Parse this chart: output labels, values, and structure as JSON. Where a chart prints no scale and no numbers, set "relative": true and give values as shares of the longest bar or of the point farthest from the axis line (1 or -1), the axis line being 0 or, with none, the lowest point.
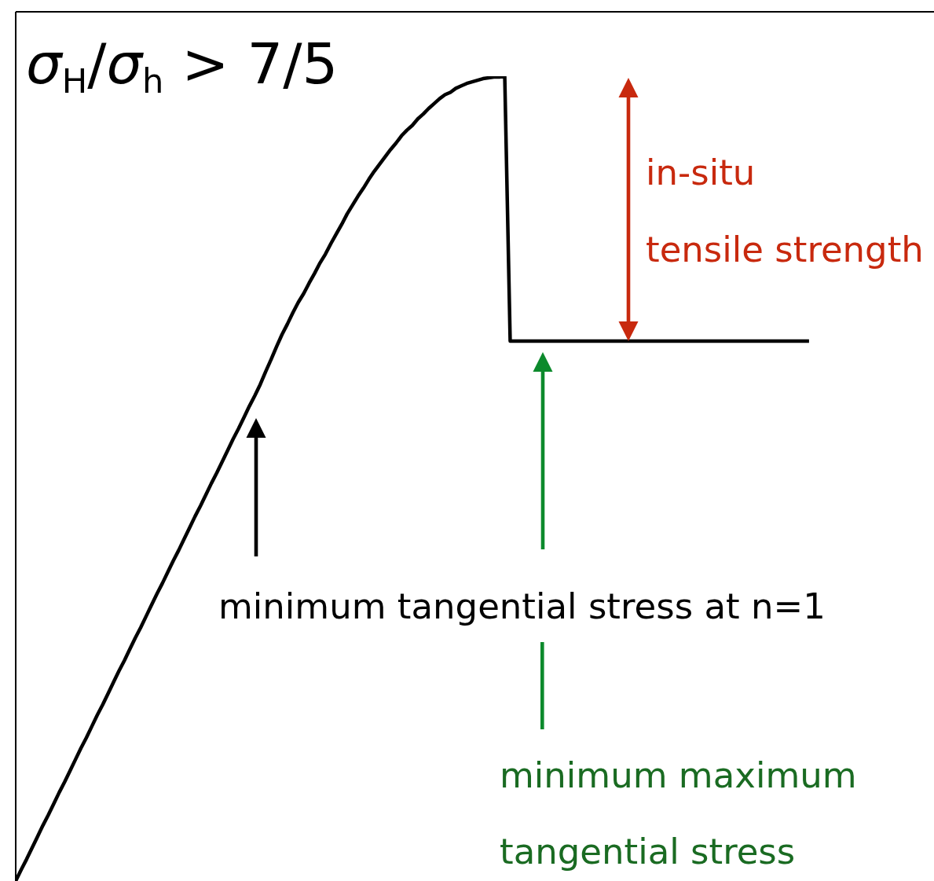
{
  "chart_data": {
    "type": "line",
    "title": "σ$_{H}$/σ$_{h}$ > 7/5",
    "relative": true,
    "color": "#000000",
    "annotations": [
      "in-situ\ntensile strength",
      "minimum tangential stress at n=1",
      "minimum maximum\ntangential stress"
    ],
    "categories": [
      null,
      null,
      null,
      null,
      null,
      null,
      null,
      null,
      null,
      null,
      null,
      null,
      null,
      null,
      null,
      null,
      null,
      null,
      null,
      null,
      null,
      null,
      null,
      null,
      null,
      null,
      null,
      null,
      null,
      null,
      null,
      null,
      null,
      null,
      null,
      null,
      null,
      null,
      null,
      null,
      null,
      null,
      null,
      null,
      null,
      null,
      null,
      null,
      null,
      null,
      null,
      null,
      null,
      null,
      null,
      null,
      null,
      null,
      null,
      null,
      null,
      null,
      null,
      null,
      null,
      null,
      null,
      null,
      null,
      null,
      null,
      null,
      null,
      null,
      null,
      null,
      null,
      null,
      null,
      null,
      null,
      null,
      null,
      null,
      null,
      null,
      null,
      null,
      null,
      null,
      null,
      null,
      null,
      null,
      null,
      null,
      null,
      null,
      null,
      null,
      null,
      null,
      null,
      null,
      null,
      null,
      null,
      null,
      null,
      null,
      null,
      null,
      null,
      null,
      null,
      null,
      null,
      null,
      null,
      null,
      null,
      null,
      null,
      null,
      null,
      null,
      null,
      null,
      null,
      null,
      null,
      null,
      null,
      null,
      null,
      null,
      null,
      null,
      null,
      null,
      null,
      null,
      null,
      null,
      null,
      null,
      null,
      null,
      null,
      null,
      null,
      null,
      null,
      null,
      null,
      null,
      null,
      null,
      null,
      null,
      null,
      null,
      null,
      null,
      null,
      null,
      null,
      null,
      null,
      null
    ],
    "values": [
      0,
      0.014,
      0.027,
      0.041,
      0.055,
      0.069,
      0.082,
      0.096,
      0.11,
      0.123,
      0.137,
      0.151,
      0.165,
      0.178,
      0.192,
      0.206,
      0.219,
      0.233,
      0.247,
      0.261,
      0.274,
      0.288,
      0.302,
      0.315,
      0.329,
      0.343,
      0.357,
      0.37,
      0.384,
      0.398,
      0.411,
      0.425,
      0.439,
      0.453,
      0.466,
      0.48,
      0.494,
      0.507,
      0.521,
      0.535,
      0.549,
      0.562,
      0.576,
      0.59,
      0.603,
      0.617,
      0.633,
      0.648,
      0.664,
      0.679,
      0.692,
      0.706,
      0.719,
      0.73,
      0.743,
      0.755,
      0.768,
      0.779,
      0.792,
      0.804,
      0.816,
      0.829,
      0.84,
      0.851,
      0.861,
      0.872,
      0.882,
      0.891,
      0.9,
      0.909,
      0.917,
      0.926,
      0.933,
      0.939,
      0.947,
      0.953,
      0.96,
      0.966,
      0.972,
      0.977,
      0.98,
      0.985,
      0.988,
      0.991,
      0.993,
      0.995,
      0.997,
      0.998,
      0.999,
      0.999,
      1,
      0.671,
      0.671,
      0.671,
      0.671,
      0.671,
      0.671,
      0.671,
      0.671,
      0.671,
      0.671,
      0.671,
      0.671,
      0.671,
      0.671,
      0.671,
      0.671,
      0.671,
      0.671,
      0.671,
      0.671,
      0.671,
      0.671,
      0.671,
      0.671,
      0.671,
      0.671,
      0.671,
      0.671,
      0.671,
      0.671,
      0.671,
      0.671,
      0.671,
      0.671,
      0.671,
      0.671,
      0.671,
      0.671,
      0.671,
      0.671,
      0.671,
      0.671,
      0.671,
      0.671,
      0.671,
      0.671,
      0.671,
      0.671,
      0.671,
      0.671,
      0.671,
      0.671,
      0.671,
      0.671,
      0.671,
      0.671,
      null,
      null,
      null,
      null,
      null,
      null,
      null,
      null,
      null,
      null,
      null,
      null,
      null,
      null,
      null,
      null,
      null,
      null,
      null,
      null,
      null,
      null,
      null
    ]
  }
}
